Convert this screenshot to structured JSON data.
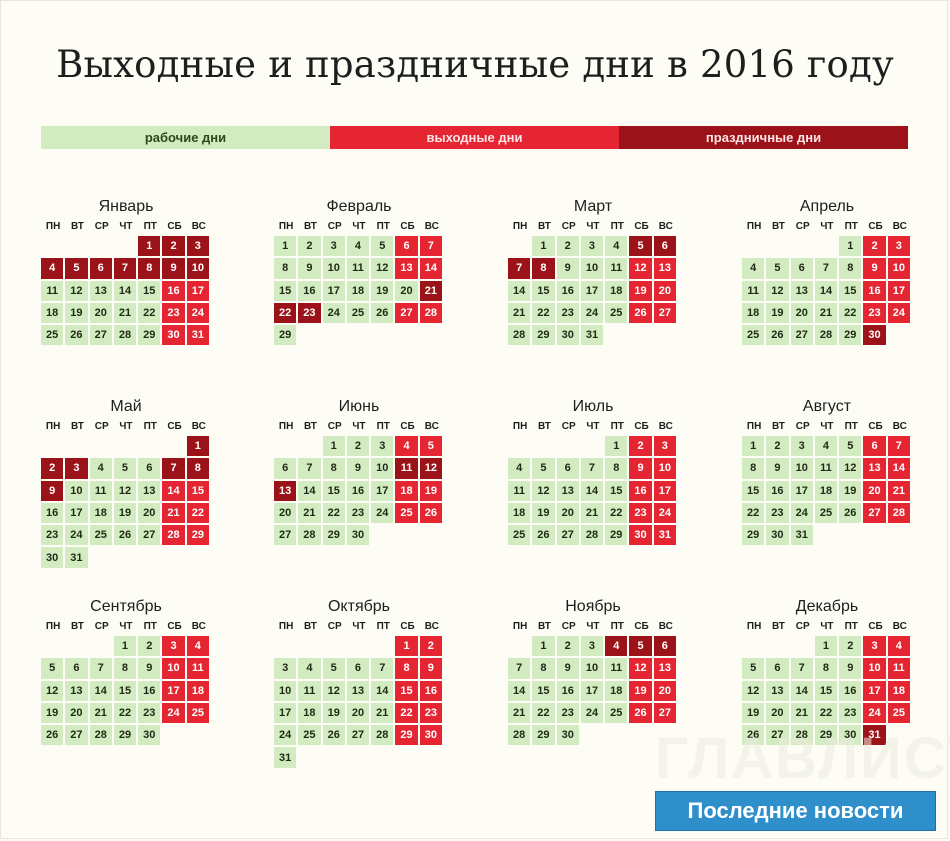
{
  "title": "Выходные и праздничные дни в 2016 году",
  "legend": {
    "work": "рабочие дни",
    "weekend": "выходные дни",
    "holiday": "праздничные дни"
  },
  "colors": {
    "work": "#d3ebc0",
    "weekend": "#e52632",
    "holiday": "#9b1218",
    "banner": "#2f8fca"
  },
  "weekdays": [
    "ПН",
    "ВТ",
    "СР",
    "ЧТ",
    "ПТ",
    "СБ",
    "ВС"
  ],
  "months": [
    {
      "name": "Январь",
      "offset": 4,
      "days": 31,
      "holidays": [
        1,
        2,
        3,
        4,
        5,
        6,
        7,
        8,
        9,
        10
      ],
      "weekends": [
        16,
        17,
        23,
        24,
        30,
        31
      ]
    },
    {
      "name": "Февраль",
      "offset": 0,
      "days": 29,
      "holidays": [
        21,
        22,
        23
      ],
      "weekends": [
        6,
        7,
        13,
        14,
        27,
        28
      ]
    },
    {
      "name": "Март",
      "offset": 1,
      "days": 31,
      "holidays": [
        5,
        6,
        7,
        8
      ],
      "weekends": [
        12,
        13,
        19,
        20,
        26,
        27
      ]
    },
    {
      "name": "Апрель",
      "offset": 4,
      "days": 30,
      "holidays": [
        30
      ],
      "weekends": [
        2,
        3,
        9,
        10,
        16,
        17,
        23,
        24
      ]
    },
    {
      "name": "Май",
      "offset": 6,
      "days": 31,
      "holidays": [
        1,
        2,
        3,
        7,
        8,
        9
      ],
      "weekends": [
        14,
        15,
        21,
        22,
        28,
        29
      ]
    },
    {
      "name": "Июнь",
      "offset": 2,
      "days": 30,
      "holidays": [
        11,
        12,
        13
      ],
      "weekends": [
        4,
        5,
        18,
        19,
        25,
        26
      ]
    },
    {
      "name": "Июль",
      "offset": 4,
      "days": 31,
      "holidays": [],
      "weekends": [
        2,
        3,
        9,
        10,
        16,
        17,
        23,
        24,
        30,
        31
      ]
    },
    {
      "name": "Август",
      "offset": 0,
      "days": 31,
      "holidays": [],
      "weekends": [
        6,
        7,
        13,
        14,
        20,
        21,
        27,
        28
      ]
    },
    {
      "name": "Сентябрь",
      "offset": 3,
      "days": 30,
      "holidays": [],
      "weekends": [
        3,
        4,
        10,
        11,
        17,
        18,
        24,
        25
      ]
    },
    {
      "name": "Октябрь",
      "offset": 5,
      "days": 31,
      "holidays": [],
      "weekends": [
        1,
        2,
        8,
        9,
        15,
        16,
        22,
        23,
        29,
        30
      ]
    },
    {
      "name": "Ноябрь",
      "offset": 1,
      "days": 30,
      "holidays": [
        4,
        5,
        6
      ],
      "weekends": [
        12,
        13,
        19,
        20,
        26,
        27
      ]
    },
    {
      "name": "Декабрь",
      "offset": 3,
      "days": 31,
      "holidays": [
        31
      ],
      "weekends": [
        3,
        4,
        10,
        11,
        17,
        18,
        24,
        25
      ]
    }
  ],
  "watermark": "ГЛАВЛИСТ",
  "banner": "Последние новости"
}
